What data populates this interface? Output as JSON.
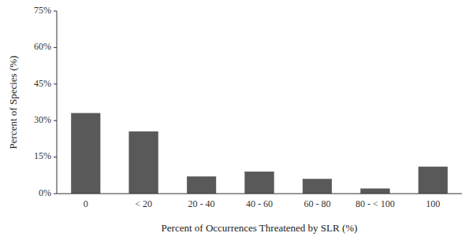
{
  "chart_data": {
    "type": "bar",
    "categories": [
      "0",
      "< 20",
      "20 - 40",
      "40 - 60",
      "60 - 80",
      "80 - < 100",
      "100"
    ],
    "values": [
      33.0,
      25.5,
      7.0,
      9.0,
      6.0,
      2.0,
      11.0
    ],
    "color": "#595959",
    "xlabel": "Percent of Occurrences Threatened by SLR (%)",
    "ylabel": "Percent of Species (%)",
    "ylim": [
      0,
      75
    ],
    "yticks": [
      {
        "value": 0,
        "label": "0%"
      },
      {
        "value": 15,
        "label": "15%"
      },
      {
        "value": 30,
        "label": "30%"
      },
      {
        "value": 45,
        "label": "45%"
      },
      {
        "value": 60,
        "label": "60%"
      },
      {
        "value": 75,
        "label": "75%"
      }
    ],
    "grid": false
  }
}
